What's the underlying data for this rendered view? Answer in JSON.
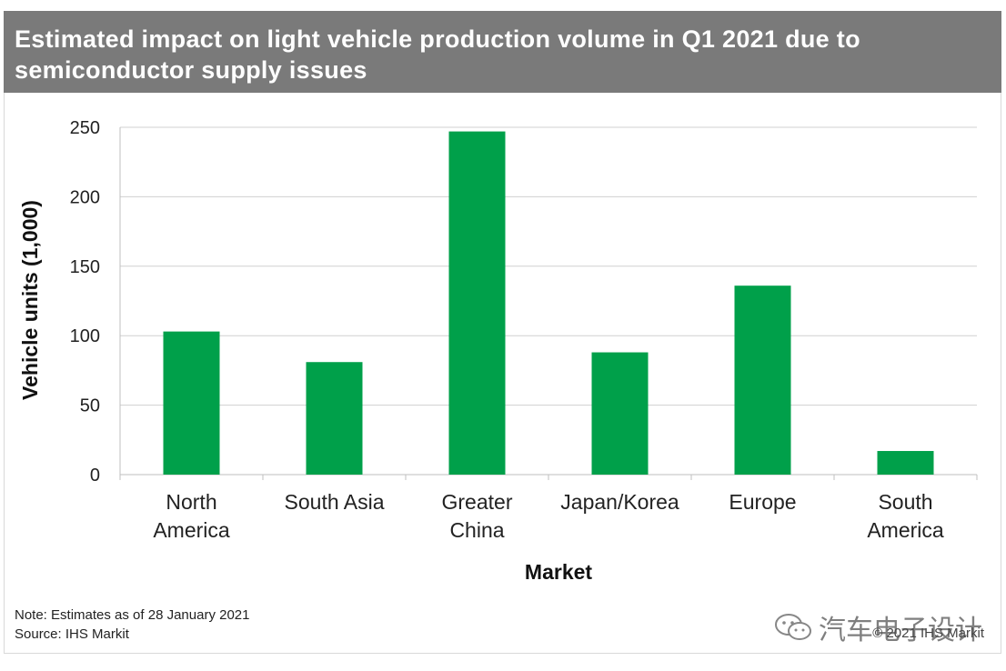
{
  "chart_data": {
    "type": "bar",
    "title": "Estimated impact on light vehicle production volume in Q1 2021 due to semiconductor supply issues",
    "xlabel": "Market",
    "ylabel": "Vehicle units (1,000)",
    "ylim": [
      0,
      250
    ],
    "yticks": [
      0,
      50,
      100,
      150,
      200,
      250
    ],
    "grid": true,
    "categories": [
      [
        "North",
        "America"
      ],
      [
        "South Asia"
      ],
      [
        "Greater",
        "China"
      ],
      [
        "Japan/Korea"
      ],
      [
        "Europe"
      ],
      [
        "South",
        "America"
      ]
    ],
    "values": [
      103,
      81,
      247,
      88,
      136,
      17
    ],
    "bar_color": "#00a04a"
  },
  "notes": {
    "note": "Note: Estimates as of 28 January 2021",
    "source": "Source: IHS Markit",
    "copyright": "© 2021 IHS Markit"
  },
  "watermark": {
    "text": "汽车电子设计",
    "icon": "wechat-icon"
  }
}
